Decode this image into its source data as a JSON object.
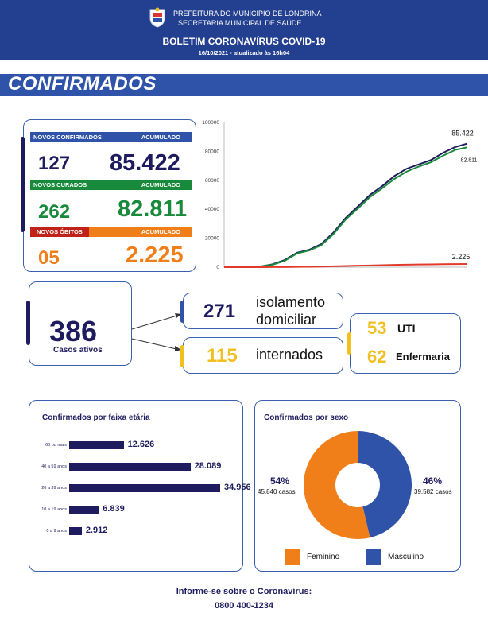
{
  "header": {
    "org_line1": "PREFEITURA DO MUNICÍPIO DE LONDRINA",
    "org_line2": "SECRETARIA MUNICIPAL DE SAÚDE",
    "title": "BOLETIM CORONAVÍRUS COVID-19",
    "date": "16/10/2021 - atualizado às 16h04"
  },
  "section_title": "CONFIRMADOS",
  "summary": {
    "confirmed_label": "NOVOS CONFIRMADOS",
    "confirmed_acc_label": "ACUMULADO",
    "confirmed_new": "127",
    "confirmed_total": "85.422",
    "cured_label": "NOVOS CURADOS",
    "cured_acc_label": "ACUMULADO",
    "cured_new": "262",
    "cured_total": "82.811",
    "deaths_label": "NOVOS ÓBITOS",
    "deaths_acc_label": "ACUMULADO",
    "deaths_new": "05",
    "deaths_total": "2.225"
  },
  "chart_data": [
    {
      "type": "line",
      "title": "",
      "ylim": [
        0,
        100000
      ],
      "yticks": [
        "0",
        "20000",
        "40000",
        "60000",
        "80000",
        "100000"
      ],
      "x": [
        0,
        5,
        10,
        15,
        20,
        25,
        30,
        35,
        40,
        45,
        50,
        55,
        60,
        65,
        70,
        75,
        80,
        85,
        90,
        95,
        100
      ],
      "series": [
        {
          "name": "Confirmados",
          "color": "#1e1c5e",
          "values": [
            0,
            50,
            100,
            500,
            2000,
            5000,
            10000,
            12000,
            16000,
            24000,
            34000,
            42000,
            50000,
            56000,
            63000,
            68000,
            71000,
            74000,
            79000,
            83000,
            85422
          ]
        },
        {
          "name": "Curados",
          "color": "#198a3c",
          "values": [
            0,
            30,
            80,
            400,
            1700,
            4500,
            9500,
            11500,
            15200,
            23000,
            33000,
            40500,
            48500,
            54500,
            61000,
            66000,
            69500,
            72500,
            77000,
            81000,
            82811
          ]
        },
        {
          "name": "Óbitos",
          "color": "#e23a2a",
          "values": [
            0,
            5,
            10,
            20,
            50,
            100,
            200,
            300,
            400,
            600,
            800,
            1000,
            1200,
            1400,
            1600,
            1750,
            1850,
            1950,
            2050,
            2150,
            2225
          ]
        }
      ],
      "end_labels": {
        "confirmados": "85.422",
        "curados": "82.811",
        "obitos": "2.225"
      }
    },
    {
      "type": "bar",
      "title": "Confirmados por faixa etária",
      "categories": [
        "60 ou mais",
        "40 a 59 anos",
        "20 a 39 anos",
        "10 a 19 anos",
        "0 a 9 anos"
      ],
      "values": [
        12626,
        28089,
        34956,
        6839,
        2912
      ],
      "value_labels": [
        "12.626",
        "28.089",
        "34.956",
        "6.839",
        "2.912"
      ]
    },
    {
      "type": "pie",
      "title": "Confirmados por sexo",
      "categories": [
        "Feminino",
        "Masculino"
      ],
      "values": [
        45840,
        39582
      ],
      "percent_labels": [
        "54%",
        "46%"
      ],
      "count_labels": [
        "45.840 casos",
        "39.582 casos"
      ],
      "colors": [
        "#f07f1a",
        "#2f53a8"
      ]
    }
  ],
  "active": {
    "count": "386",
    "label": "Casos ativos",
    "home_count": "271",
    "home_label_1": "isolamento",
    "home_label_2": "domiciliar",
    "hosp_count": "115",
    "hosp_label": "internados",
    "uti_count": "53",
    "uti_label": "UTI",
    "ward_count": "62",
    "ward_label": "Enfermaria"
  },
  "footer": {
    "line1": "Informe-se sobre o Coronavírus:",
    "phone": "0800 400-1234"
  }
}
